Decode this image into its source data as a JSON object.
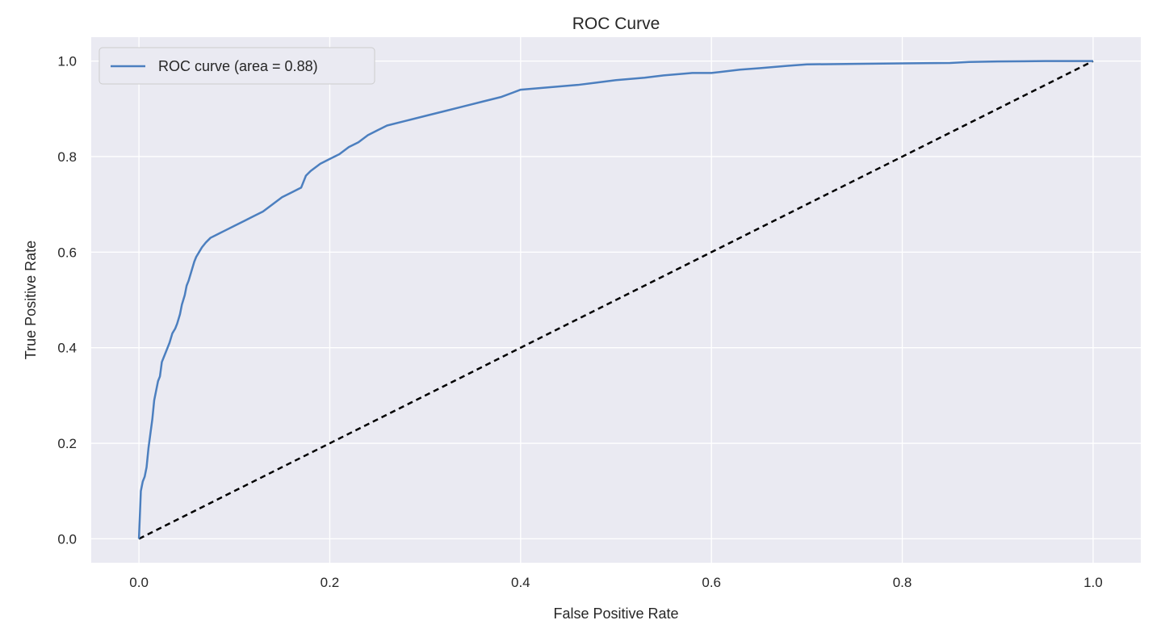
{
  "colors": {
    "plot_background": "#eaeaf2",
    "grid": "#ffffff",
    "roc_line": "#4c7fbf",
    "diagonal": "#000000",
    "legend_border": "#cccccc"
  },
  "chart_data": {
    "type": "line",
    "title": "ROC Curve",
    "xlabel": "False Positive Rate",
    "ylabel": "True Positive Rate",
    "xlim": [
      -0.05,
      1.05
    ],
    "ylim": [
      -0.05,
      1.05
    ],
    "grid": true,
    "legend_position": "top-left",
    "x_ticks": [
      0.0,
      0.2,
      0.4,
      0.6,
      0.8,
      1.0
    ],
    "y_ticks": [
      0.0,
      0.2,
      0.4,
      0.6,
      0.8,
      1.0
    ],
    "x_tick_labels": [
      "0.0",
      "0.2",
      "0.4",
      "0.6",
      "0.8",
      "1.0"
    ],
    "y_tick_labels": [
      "0.0",
      "0.2",
      "0.4",
      "0.6",
      "0.8",
      "1.0"
    ],
    "series": [
      {
        "name": "ROC curve (area = 0.88)",
        "style": "solid",
        "x": [
          0.0,
          0.001,
          0.002,
          0.004,
          0.006,
          0.008,
          0.01,
          0.012,
          0.014,
          0.016,
          0.018,
          0.02,
          0.022,
          0.024,
          0.026,
          0.028,
          0.03,
          0.032,
          0.035,
          0.038,
          0.04,
          0.043,
          0.045,
          0.048,
          0.05,
          0.052,
          0.055,
          0.058,
          0.06,
          0.063,
          0.066,
          0.07,
          0.075,
          0.08,
          0.085,
          0.09,
          0.1,
          0.11,
          0.12,
          0.13,
          0.14,
          0.15,
          0.16,
          0.17,
          0.175,
          0.18,
          0.19,
          0.2,
          0.21,
          0.22,
          0.23,
          0.24,
          0.25,
          0.26,
          0.28,
          0.3,
          0.32,
          0.34,
          0.36,
          0.38,
          0.4,
          0.43,
          0.46,
          0.48,
          0.5,
          0.53,
          0.55,
          0.58,
          0.6,
          0.63,
          0.65,
          0.68,
          0.7,
          0.75,
          0.8,
          0.85,
          0.87,
          0.9,
          0.95,
          1.0
        ],
        "y": [
          0.0,
          0.05,
          0.1,
          0.12,
          0.13,
          0.15,
          0.19,
          0.22,
          0.25,
          0.29,
          0.31,
          0.33,
          0.34,
          0.37,
          0.38,
          0.39,
          0.4,
          0.41,
          0.43,
          0.44,
          0.45,
          0.47,
          0.49,
          0.51,
          0.53,
          0.54,
          0.56,
          0.58,
          0.59,
          0.6,
          0.61,
          0.62,
          0.63,
          0.635,
          0.64,
          0.645,
          0.655,
          0.665,
          0.675,
          0.685,
          0.7,
          0.715,
          0.725,
          0.735,
          0.76,
          0.77,
          0.785,
          0.795,
          0.805,
          0.82,
          0.83,
          0.845,
          0.855,
          0.865,
          0.875,
          0.885,
          0.895,
          0.905,
          0.915,
          0.925,
          0.94,
          0.945,
          0.95,
          0.955,
          0.96,
          0.965,
          0.97,
          0.975,
          0.975,
          0.982,
          0.985,
          0.99,
          0.993,
          0.994,
          0.995,
          0.996,
          0.998,
          0.999,
          1.0,
          1.0
        ]
      },
      {
        "name": "",
        "style": "dashed",
        "x": [
          0.0,
          1.0
        ],
        "y": [
          0.0,
          1.0
        ]
      }
    ]
  }
}
